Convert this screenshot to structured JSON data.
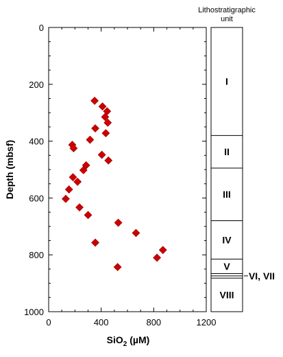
{
  "chart_data": {
    "type": "scatter",
    "xlabel_main": "SiO",
    "xlabel_sub": "2",
    "xlabel_unit": " (µM)",
    "ylabel": "Depth (mbsf)",
    "xlim": [
      0,
      1200
    ],
    "ylim": [
      0,
      1000
    ],
    "y_inverted": true,
    "x_ticks": [
      "0",
      "400",
      "800",
      "1200"
    ],
    "y_ticks": [
      "0",
      "200",
      "400",
      "600",
      "800",
      "1000"
    ],
    "grid": false,
    "marker": "diamond",
    "marker_color": "#cc0000",
    "points": [
      {
        "x": 350,
        "y": 258
      },
      {
        "x": 410,
        "y": 278
      },
      {
        "x": 445,
        "y": 295
      },
      {
        "x": 430,
        "y": 315
      },
      {
        "x": 450,
        "y": 335
      },
      {
        "x": 355,
        "y": 355
      },
      {
        "x": 435,
        "y": 372
      },
      {
        "x": 315,
        "y": 395
      },
      {
        "x": 180,
        "y": 413
      },
      {
        "x": 190,
        "y": 425
      },
      {
        "x": 405,
        "y": 448
      },
      {
        "x": 455,
        "y": 468
      },
      {
        "x": 285,
        "y": 485
      },
      {
        "x": 265,
        "y": 502
      },
      {
        "x": 185,
        "y": 527
      },
      {
        "x": 220,
        "y": 543
      },
      {
        "x": 155,
        "y": 570
      },
      {
        "x": 130,
        "y": 603
      },
      {
        "x": 235,
        "y": 633
      },
      {
        "x": 300,
        "y": 660
      },
      {
        "x": 530,
        "y": 687
      },
      {
        "x": 665,
        "y": 723
      },
      {
        "x": 355,
        "y": 757
      },
      {
        "x": 870,
        "y": 783
      },
      {
        "x": 825,
        "y": 810
      },
      {
        "x": 525,
        "y": 843
      }
    ]
  },
  "litho_column": {
    "title_line1": "Lithostratigraphic",
    "title_line2": "unit",
    "units": [
      {
        "label": "I",
        "top": 0,
        "bottom": 380
      },
      {
        "label": "II",
        "top": 380,
        "bottom": 495
      },
      {
        "label": "III",
        "top": 495,
        "bottom": 680
      },
      {
        "label": "IV",
        "top": 680,
        "bottom": 815
      },
      {
        "label": "V",
        "top": 815,
        "bottom": 866
      },
      {
        "label": "VIII",
        "top": 882,
        "bottom": 1000
      }
    ],
    "thin_boundaries": [
      866,
      874,
      882
    ],
    "side_label": "VI, VII"
  }
}
